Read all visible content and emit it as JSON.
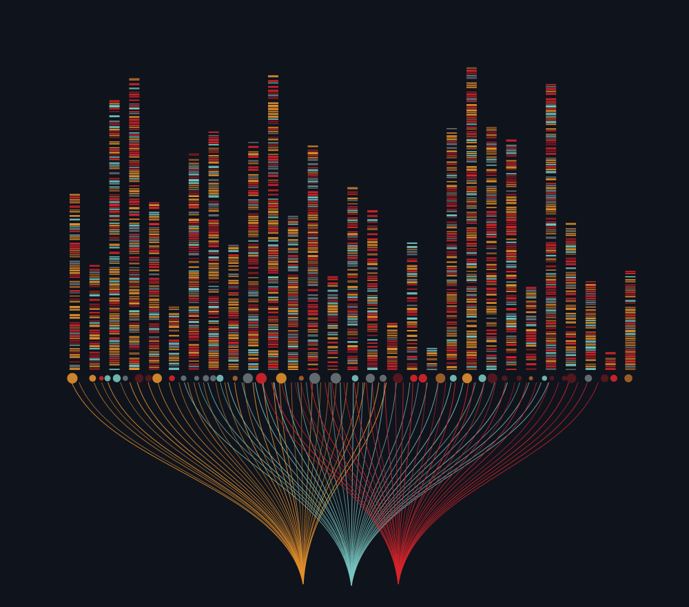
{
  "colors": {
    "background": "#0f131c",
    "orange": "#e2902e",
    "teal": "#78c6c0",
    "red": "#d8252b",
    "dark_red": "#8a1c22",
    "gray": "#6a7478",
    "brown": "#a8642a"
  },
  "columns": [
    {
      "relative_height": 0.58
    },
    {
      "relative_height": 0.35
    },
    {
      "relative_height": 0.89
    },
    {
      "relative_height": 0.97
    },
    {
      "relative_height": 0.55
    },
    {
      "relative_height": 0.21
    },
    {
      "relative_height": 0.71
    },
    {
      "relative_height": 0.79
    },
    {
      "relative_height": 0.41
    },
    {
      "relative_height": 0.75
    },
    {
      "relative_height": 0.97
    },
    {
      "relative_height": 0.51
    },
    {
      "relative_height": 0.74
    },
    {
      "relative_height": 0.31
    },
    {
      "relative_height": 0.6
    },
    {
      "relative_height": 0.52
    },
    {
      "relative_height": 0.16
    },
    {
      "relative_height": 0.42
    },
    {
      "relative_height": 0.07
    },
    {
      "relative_height": 0.8
    },
    {
      "relative_height": 1.0
    },
    {
      "relative_height": 0.8
    },
    {
      "relative_height": 0.76
    },
    {
      "relative_height": 0.27
    },
    {
      "relative_height": 0.94
    },
    {
      "relative_height": 0.48
    },
    {
      "relative_height": 0.29
    },
    {
      "relative_height": 0.06
    },
    {
      "relative_height": 0.33
    }
  ],
  "fan_groups": [
    {
      "name": "orange",
      "color": "orange"
    },
    {
      "name": "teal",
      "color": "teal"
    },
    {
      "name": "red",
      "color": "red"
    }
  ]
}
